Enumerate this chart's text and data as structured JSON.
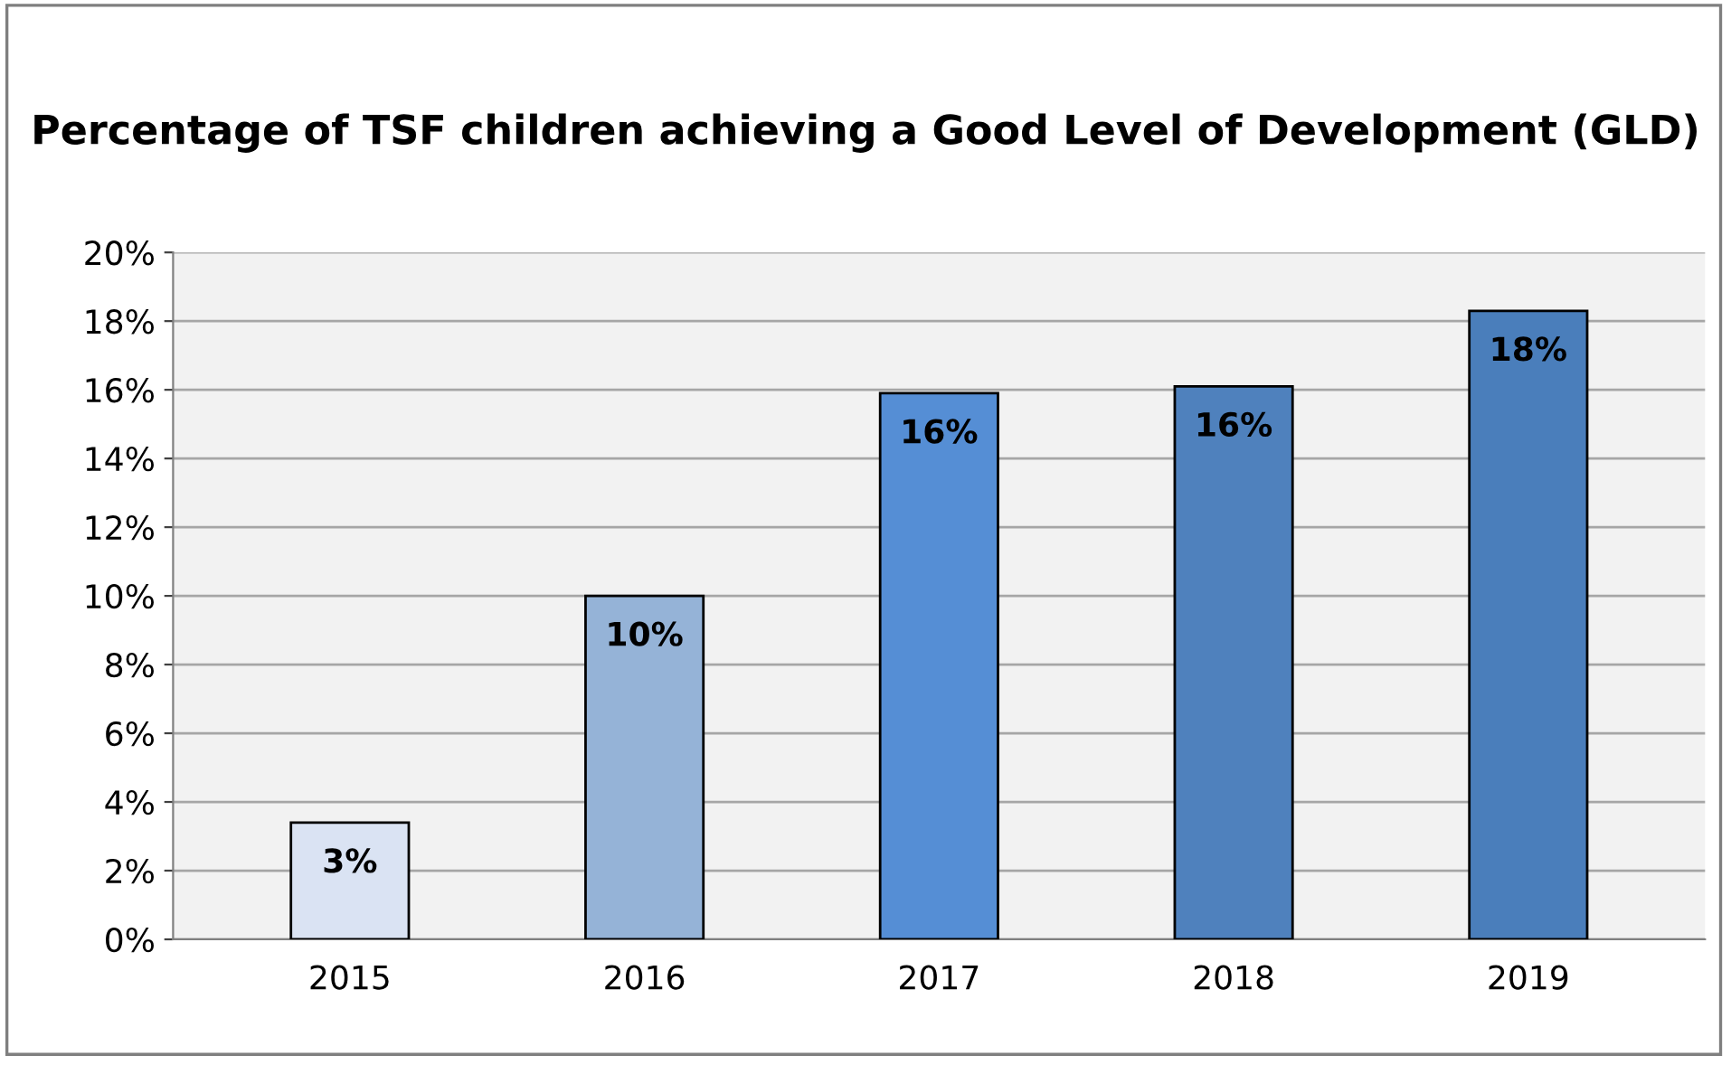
{
  "chart_data": {
    "type": "bar",
    "title": "Percentage of TSF children achieving a Good Level of Development (GLD)",
    "categories": [
      "2015",
      "2016",
      "2017",
      "2018",
      "2019"
    ],
    "values": [
      3.4,
      10.0,
      15.9,
      16.1,
      18.3
    ],
    "colors": [
      "#dae3f3",
      "#95b3d7",
      "#558ed5",
      "#4f81bd",
      "#4a7ebb"
    ],
    "value_labels": [
      "3%",
      "10%",
      "16%",
      "16%",
      "18%"
    ],
    "ylim": [
      0,
      20
    ],
    "yticks": [
      {
        "value": 0,
        "label": "0%"
      },
      {
        "value": 2,
        "label": "2%"
      },
      {
        "value": 4,
        "label": "4%"
      },
      {
        "value": 6,
        "label": "6%"
      },
      {
        "value": 8,
        "label": "8%"
      },
      {
        "value": 10,
        "label": "10%"
      },
      {
        "value": 12,
        "label": "12%"
      },
      {
        "value": 14,
        "label": "14%"
      },
      {
        "value": 16,
        "label": "16%"
      },
      {
        "value": 18,
        "label": "18%"
      },
      {
        "value": 20,
        "label": "20%"
      }
    ],
    "grid": "y",
    "legend": false
  }
}
